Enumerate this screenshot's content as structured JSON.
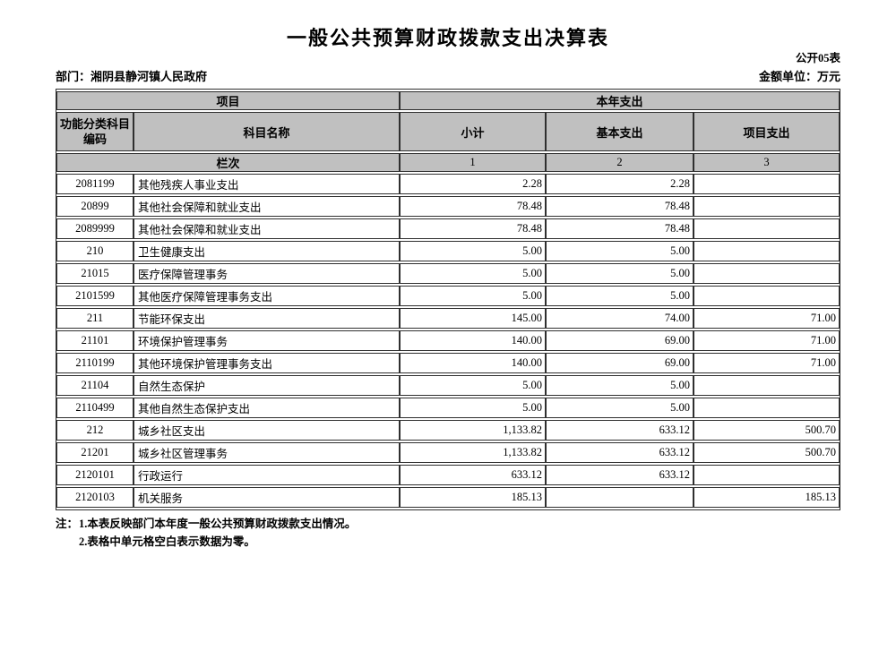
{
  "page": {
    "title": "一般公共预算财政拨款支出决算表",
    "doc_code": "公开05表",
    "department": "部门：湘阴县静河镇人民政府",
    "unit": "金额单位：万元"
  },
  "table": {
    "header": {
      "project_group": "项目",
      "year_expense_group": "本年支出",
      "col_code": "功能分类科目编码",
      "col_name": "科目名称",
      "col_subtotal": "小计",
      "col_basic": "基本支出",
      "col_project": "项目支出",
      "row_label": "栏次",
      "col_index_1": "1",
      "col_index_2": "2",
      "col_index_3": "3"
    },
    "rows": [
      {
        "code": "2081199",
        "name": "其他残疾人事业支出",
        "subtotal": "2.28",
        "basic": "2.28",
        "project": ""
      },
      {
        "code": "20899",
        "name": "其他社会保障和就业支出",
        "subtotal": "78.48",
        "basic": "78.48",
        "project": ""
      },
      {
        "code": "2089999",
        "name": "其他社会保障和就业支出",
        "subtotal": "78.48",
        "basic": "78.48",
        "project": ""
      },
      {
        "code": "210",
        "name": "卫生健康支出",
        "subtotal": "5.00",
        "basic": "5.00",
        "project": ""
      },
      {
        "code": "21015",
        "name": "医疗保障管理事务",
        "subtotal": "5.00",
        "basic": "5.00",
        "project": ""
      },
      {
        "code": "2101599",
        "name": "其他医疗保障管理事务支出",
        "subtotal": "5.00",
        "basic": "5.00",
        "project": ""
      },
      {
        "code": "211",
        "name": "节能环保支出",
        "subtotal": "145.00",
        "basic": "74.00",
        "project": "71.00"
      },
      {
        "code": "21101",
        "name": "环境保护管理事务",
        "subtotal": "140.00",
        "basic": "69.00",
        "project": "71.00"
      },
      {
        "code": "2110199",
        "name": "其他环境保护管理事务支出",
        "subtotal": "140.00",
        "basic": "69.00",
        "project": "71.00"
      },
      {
        "code": "21104",
        "name": "自然生态保护",
        "subtotal": "5.00",
        "basic": "5.00",
        "project": ""
      },
      {
        "code": "2110499",
        "name": "其他自然生态保护支出",
        "subtotal": "5.00",
        "basic": "5.00",
        "project": ""
      },
      {
        "code": "212",
        "name": "城乡社区支出",
        "subtotal": "1,133.82",
        "basic": "633.12",
        "project": "500.70"
      },
      {
        "code": "21201",
        "name": "城乡社区管理事务",
        "subtotal": "1,133.82",
        "basic": "633.12",
        "project": "500.70"
      },
      {
        "code": "2120101",
        "name": "行政运行",
        "subtotal": "633.12",
        "basic": "633.12",
        "project": ""
      },
      {
        "code": "2120103",
        "name": "机关服务",
        "subtotal": "185.13",
        "basic": "",
        "project": "185.13"
      }
    ]
  },
  "notes": {
    "label": "注：",
    "items": [
      "1.本表反映部门本年度一般公共预算财政拨款支出情况。",
      "2.表格中单元格空白表示数据为零。"
    ]
  }
}
